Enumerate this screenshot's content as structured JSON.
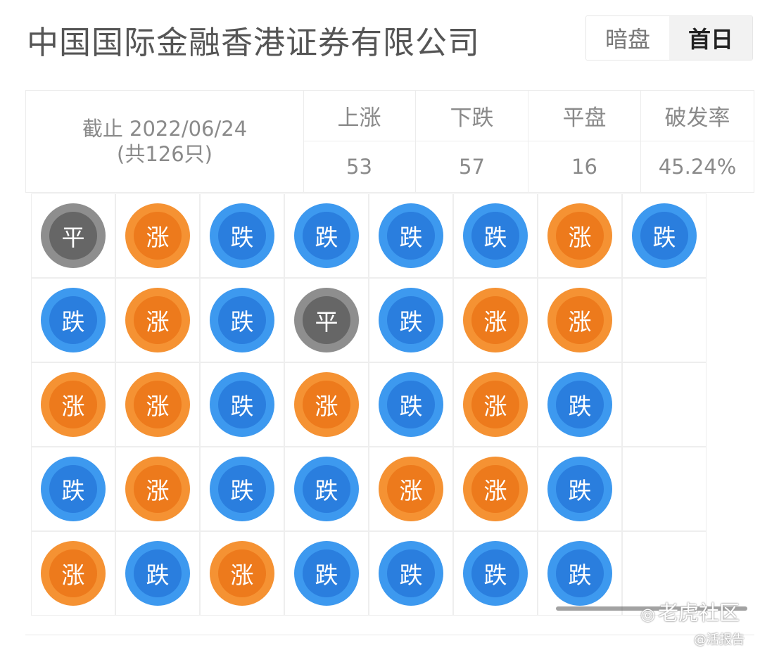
{
  "header": {
    "title": "中国国际金融香港证券有限公司",
    "tabs": [
      {
        "label": "暗盘",
        "active": false
      },
      {
        "label": "首日",
        "active": true
      }
    ]
  },
  "summary": {
    "cutoff_line1": "截止 2022/06/24",
    "cutoff_line2": "(共126只)",
    "columns": [
      {
        "label": "上涨",
        "value": "53"
      },
      {
        "label": "下跌",
        "value": "57"
      },
      {
        "label": "平盘",
        "value": "16"
      },
      {
        "label": "破发率",
        "value": "45.24%"
      }
    ]
  },
  "status_labels": {
    "up": "涨",
    "down": "跌",
    "flat": "平"
  },
  "grid": [
    [
      "flat",
      "up",
      "down",
      "down",
      "down",
      "down",
      "up",
      "down"
    ],
    [
      "down",
      "up",
      "down",
      "flat",
      "down",
      "up",
      "up",
      ""
    ],
    [
      "up",
      "up",
      "down",
      "up",
      "down",
      "up",
      "down",
      ""
    ],
    [
      "down",
      "up",
      "down",
      "down",
      "up",
      "up",
      "down",
      ""
    ],
    [
      "up",
      "down",
      "up",
      "down",
      "down",
      "down",
      "down",
      ""
    ]
  ],
  "colors": {
    "up": "#f59233",
    "down": "#3d99ef",
    "flat": "#8e8e8e"
  },
  "watermark": {
    "text": "老虎社区",
    "sub": "@活报告"
  }
}
